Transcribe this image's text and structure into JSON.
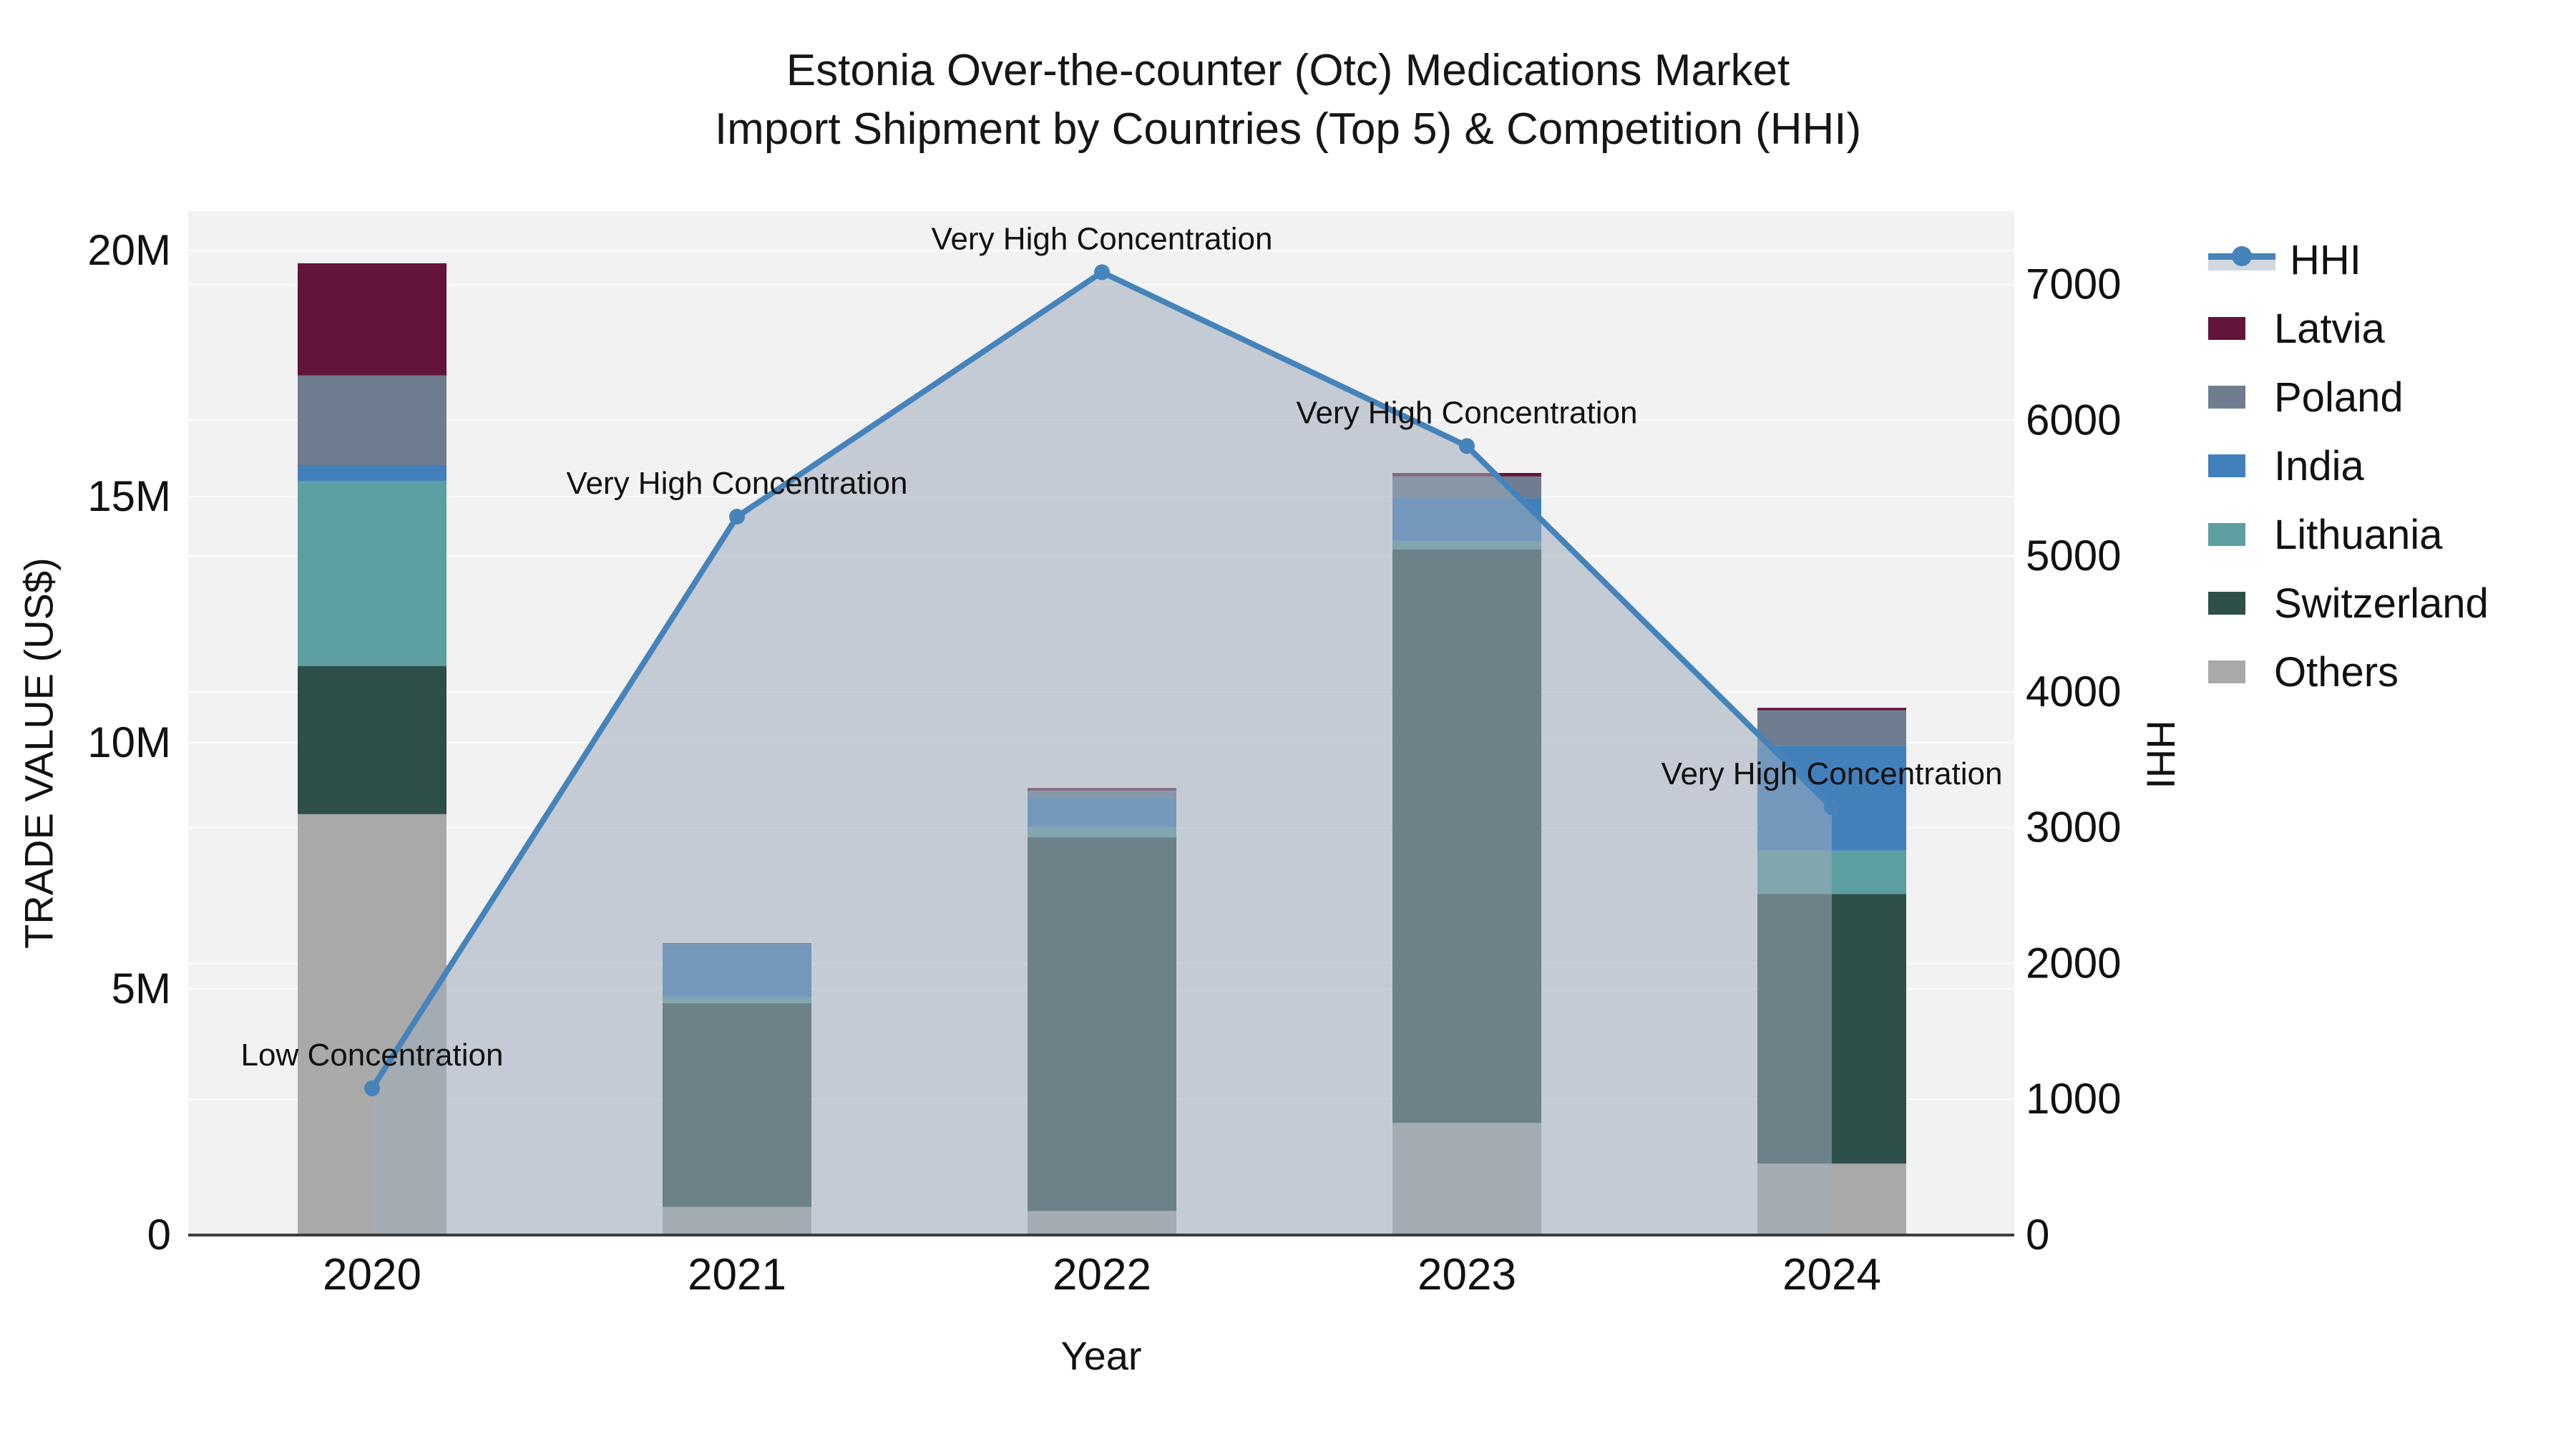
{
  "title": {
    "line1": "Estonia Over-the-counter (Otc) Medications Market",
    "line2": "Import Shipment by Countries (Top 5) & Competition (HHI)"
  },
  "axes": {
    "x": {
      "title": "Year",
      "tick_labels": [
        "2020",
        "2021",
        "2022",
        "2023",
        "2024"
      ]
    },
    "y_left": {
      "title": "TRADE VALUE (US$)",
      "tick_labels": [
        "0",
        "5M",
        "10M",
        "15M",
        "20M"
      ],
      "tick_values": [
        0,
        5,
        10,
        15,
        20
      ]
    },
    "y_right": {
      "title": "HHI",
      "tick_labels": [
        "0",
        "1000",
        "2000",
        "3000",
        "4000",
        "5000",
        "6000",
        "7000"
      ],
      "tick_values": [
        0,
        1000,
        2000,
        3000,
        4000,
        5000,
        6000,
        7000
      ]
    }
  },
  "legend": {
    "items": [
      {
        "label": "HHI",
        "type": "line",
        "color": "#4583ba",
        "band_color": "#d2d8df"
      },
      {
        "label": "Latvia",
        "type": "swatch",
        "color": "#63143a"
      },
      {
        "label": "Poland",
        "type": "swatch",
        "color": "#6e7e90"
      },
      {
        "label": "India",
        "type": "swatch",
        "color": "#4280bc"
      },
      {
        "label": "Lithuania",
        "type": "swatch",
        "color": "#5d9fa0"
      },
      {
        "label": "Switzerland",
        "type": "swatch",
        "color": "#2f4f4b"
      },
      {
        "label": "Others",
        "type": "swatch",
        "color": "#a9aaa8"
      }
    ]
  },
  "chart_data": {
    "type": "combo-stacked-bar-and-area-line",
    "categories": [
      "2020",
      "2021",
      "2022",
      "2023",
      "2024"
    ],
    "bar_value_unit": "million US$",
    "series": [
      {
        "name": "Latvia",
        "color": "#63143a",
        "values": [
          2.28,
          0.01,
          0.05,
          0.07,
          0.05
        ]
      },
      {
        "name": "Poland",
        "color": "#6e7e90",
        "values": [
          1.82,
          0.02,
          0.15,
          0.44,
          0.72
        ]
      },
      {
        "name": "India",
        "color": "#4280bc",
        "values": [
          0.32,
          1.06,
          0.59,
          0.87,
          2.13
        ]
      },
      {
        "name": "Lithuania",
        "color": "#5d9fa0",
        "values": [
          3.76,
          0.13,
          0.21,
          0.17,
          0.88
        ]
      },
      {
        "name": "Switzerland",
        "color": "#2f4f4b",
        "values": [
          3.01,
          4.14,
          7.59,
          11.65,
          5.48
        ]
      },
      {
        "name": "Others",
        "color": "#a9aaa8",
        "values": [
          8.55,
          0.57,
          0.49,
          2.28,
          1.45
        ]
      }
    ],
    "stack_order_bottom_to_top": [
      "Others",
      "Switzerland",
      "Lithuania",
      "India",
      "Poland",
      "Latvia"
    ],
    "line_series": {
      "name": "HHI",
      "color": "#4583ba",
      "area_fill": "rgba(158,172,188,0.55)",
      "values": [
        1080,
        5290,
        7090,
        5810,
        3150
      ]
    },
    "annotations": [
      {
        "category": "2020",
        "text": "Low Concentration"
      },
      {
        "category": "2021",
        "text": "Very High Concentration"
      },
      {
        "category": "2022",
        "text": "Very High Concentration"
      },
      {
        "category": "2023",
        "text": "Very High Concentration"
      },
      {
        "category": "2024",
        "text": "Very High Concentration"
      }
    ],
    "xlabel": "Year",
    "ylabel_left": "TRADE VALUE (US$)",
    "ylabel_right": "HHI",
    "ylim_left": [
      0,
      20.8
    ],
    "ylim_right": [
      0,
      7540
    ],
    "grid": true,
    "legend_position": "right",
    "plot_background": "#f2f2f2",
    "gridline_color": "#ffffff",
    "axis_line_color": "#3d3d3d"
  }
}
